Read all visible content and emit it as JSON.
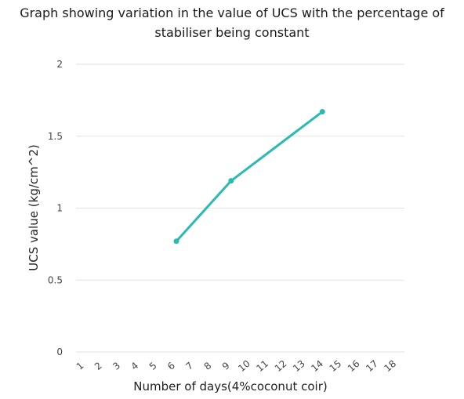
{
  "chart_data": {
    "type": "line",
    "title": "Graph showing variation in the value of UCS with the percentage of stabiliser being constant",
    "title_lines": [
      "Graph showing variation in the value of UCS with the percentage of",
      "stabiliser being constant"
    ],
    "xlabel": "Number of days(4%coconut coir)",
    "ylabel": "UCS value (kg/cm^2)",
    "categories": [
      "1",
      "2",
      "3",
      "4",
      "5",
      "6",
      "7",
      "8",
      "9",
      "10",
      "11",
      "12",
      "13",
      "14",
      "15",
      "16",
      "17",
      "18"
    ],
    "y_ticks": [
      "0",
      "0.5",
      "1",
      "1.5",
      "2"
    ],
    "ylim": [
      0,
      2
    ],
    "grid": true,
    "legend": "none",
    "series": [
      {
        "color": "#2bbab3",
        "points": [
          {
            "x": "6",
            "y": 0.77
          },
          {
            "x": "9",
            "y": 1.19
          },
          {
            "x": "14",
            "y": 1.67
          }
        ]
      }
    ]
  }
}
